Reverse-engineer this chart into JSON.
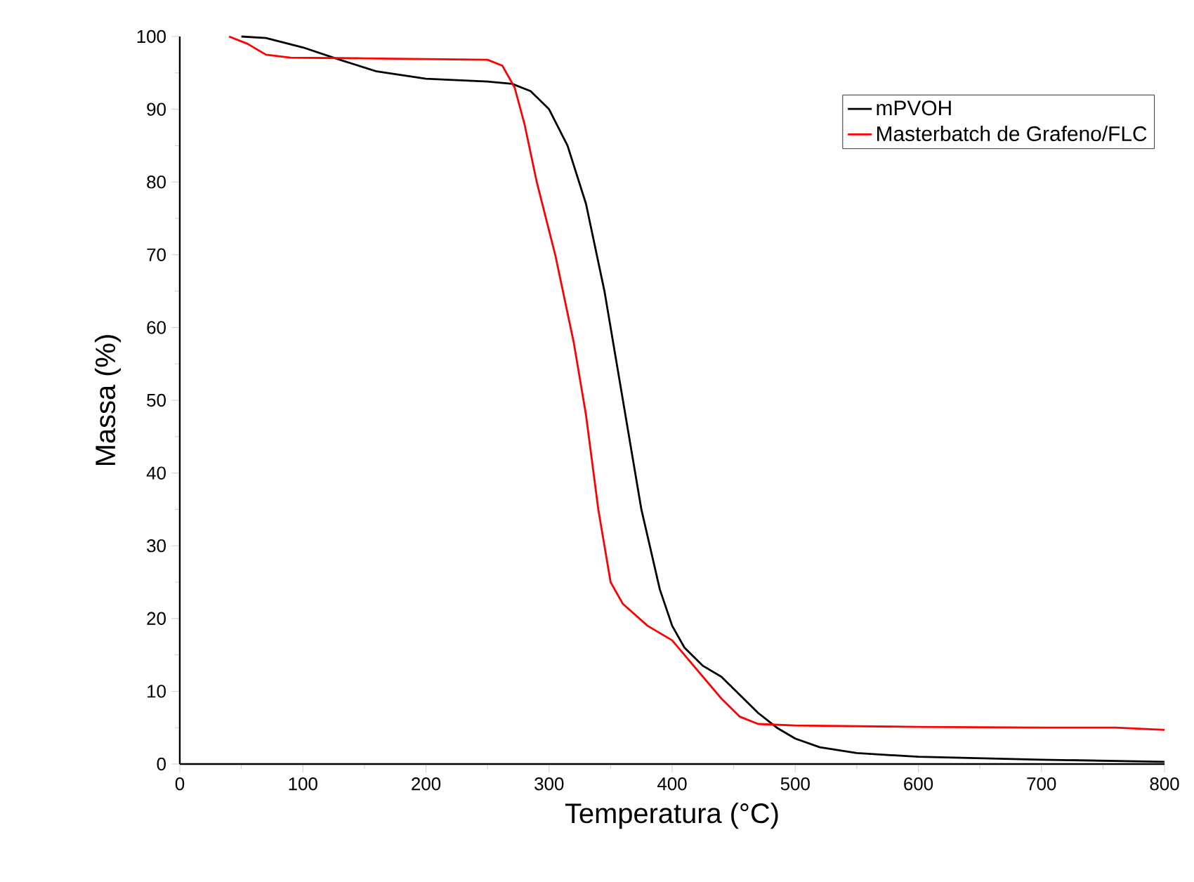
{
  "chart_data": {
    "type": "line",
    "xlabel": "Temperatura (°C)",
    "ylabel": "Massa (%)",
    "xlim": [
      0,
      800
    ],
    "ylim": [
      0,
      100
    ],
    "xticks": [
      0,
      100,
      200,
      300,
      400,
      500,
      600,
      700,
      800
    ],
    "yticks": [
      0,
      10,
      20,
      30,
      40,
      50,
      60,
      70,
      80,
      90,
      100
    ],
    "grid": false,
    "legend": "top right",
    "marker": "none",
    "line_style": "solid",
    "series": [
      {
        "name": "mPVOH",
        "color": "#000000",
        "x": [
          50,
          70,
          100,
          130,
          160,
          200,
          250,
          270,
          285,
          300,
          315,
          330,
          345,
          360,
          375,
          390,
          400,
          410,
          425,
          440,
          455,
          470,
          485,
          500,
          520,
          550,
          600,
          700,
          800
        ],
        "values": [
          100,
          99.8,
          98.5,
          96.8,
          95.2,
          94.2,
          93.8,
          93.5,
          92.5,
          90,
          85,
          77,
          65,
          50,
          35,
          24,
          19,
          16,
          13.5,
          12,
          9.5,
          7,
          5,
          3.5,
          2.3,
          1.5,
          1,
          0.6,
          0.3
        ]
      },
      {
        "name": "Masterbatch de Grafeno/FLC",
        "color": "#ff0000",
        "x": [
          40,
          55,
          70,
          90,
          150,
          250,
          262,
          272,
          280,
          290,
          305,
          320,
          330,
          340,
          350,
          360,
          380,
          400,
          420,
          440,
          455,
          470,
          500,
          600,
          700,
          760,
          800
        ],
        "values": [
          100,
          99,
          97.5,
          97.1,
          97,
          96.8,
          96,
          93,
          88,
          80,
          70,
          58,
          48,
          35,
          25,
          22,
          19,
          17,
          13,
          9,
          6.5,
          5.5,
          5.3,
          5.1,
          5.0,
          5.0,
          4.7
        ]
      }
    ]
  }
}
